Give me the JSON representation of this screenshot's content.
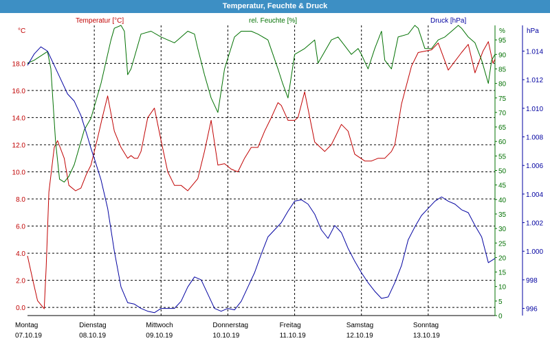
{
  "window": {
    "title": "Temperatur, Feuchte & Druck"
  },
  "legend": {
    "temperature": "Temperatur [°C]",
    "humidity": "rel. Feuchte [%]",
    "pressure": "Druck [hPa]"
  },
  "axes": {
    "temp_unit": "°C",
    "hum_unit": "%",
    "press_unit": "hPa",
    "temp_ticks": [
      "0.0",
      "2.0",
      "4.0",
      "6.0",
      "8.0",
      "10.0",
      "12.0",
      "14.0",
      "16.0",
      "18.0"
    ],
    "hum_ticks": [
      "0",
      "5",
      "10",
      "15",
      "20",
      "25",
      "30",
      "35",
      "40",
      "45",
      "50",
      "55",
      "60",
      "65",
      "70",
      "75",
      "80",
      "85",
      "90",
      "95"
    ],
    "press_ticks": [
      "996",
      "998",
      "1.000",
      "1.002",
      "1.004",
      "1.006",
      "1.008",
      "1.010",
      "1.012",
      "1.014"
    ]
  },
  "days": [
    {
      "name": "Montag",
      "date": "07.10.19"
    },
    {
      "name": "Dienstag",
      "date": "08.10.19"
    },
    {
      "name": "Mittwoch",
      "date": "09.10.19"
    },
    {
      "name": "Donnerstag",
      "date": "10.10.19"
    },
    {
      "name": "Freitag",
      "date": "11.10.19"
    },
    {
      "name": "Samstag",
      "date": "12.10.19"
    },
    {
      "name": "Sonntag",
      "date": "13.10.19"
    }
  ],
  "colors": {
    "temperature": "#c00000",
    "humidity": "#007000",
    "pressure": "#0000a0",
    "title_bar": "#3d8fc4",
    "grid": "#000000"
  },
  "chart_data": {
    "type": "line",
    "title": "Temperatur, Feuchte & Druck",
    "x_unit": "days",
    "x_range": [
      0,
      7
    ],
    "grid": true,
    "series": [
      {
        "name": "Temperatur [°C]",
        "axis": "left",
        "unit": "°C",
        "ylim": [
          -0.6,
          20.8
        ],
        "x": [
          0,
          0.08,
          0.15,
          0.25,
          0.28,
          0.32,
          0.4,
          0.45,
          0.55,
          0.62,
          0.72,
          0.8,
          0.88,
          0.95,
          1.05,
          1.12,
          1.2,
          1.3,
          1.4,
          1.5,
          1.55,
          1.6,
          1.65,
          1.7,
          1.8,
          1.9,
          2.0,
          2.1,
          2.2,
          2.3,
          2.4,
          2.55,
          2.65,
          2.75,
          2.85,
          2.95,
          3.05,
          3.15,
          3.25,
          3.35,
          3.45,
          3.55,
          3.65,
          3.75,
          3.8,
          3.9,
          4.0,
          4.05,
          4.15,
          4.3,
          4.45,
          4.55,
          4.7,
          4.8,
          4.9,
          5.05,
          5.15,
          5.25,
          5.35,
          5.45,
          5.5,
          5.6,
          5.75,
          5.85,
          5.95,
          6.05,
          6.15,
          6.3,
          6.5,
          6.6,
          6.7,
          6.82,
          6.9,
          6.97,
          7.0
        ],
        "y": [
          3.8,
          2.0,
          0.5,
          -0.1,
          3.0,
          8.5,
          11.8,
          12.3,
          11.0,
          9.0,
          8.6,
          8.8,
          9.8,
          10.5,
          12.5,
          14.0,
          15.6,
          13.0,
          11.8,
          11.0,
          11.2,
          11.0,
          11.0,
          11.5,
          14.0,
          14.7,
          12.3,
          10.0,
          9.0,
          9.0,
          8.6,
          9.5,
          11.5,
          13.8,
          10.5,
          10.6,
          10.2,
          10.0,
          11.0,
          11.8,
          11.8,
          13.0,
          14.0,
          15.1,
          14.9,
          13.8,
          13.8,
          14.0,
          15.9,
          12.2,
          11.5,
          12.0,
          13.5,
          13.0,
          11.3,
          10.8,
          10.8,
          11.0,
          11.0,
          11.5,
          12.0,
          15.0,
          17.8,
          18.8,
          18.9,
          19.0,
          19.5,
          17.5,
          18.8,
          19.4,
          17.3,
          18.9,
          19.6,
          18.0,
          18.3
        ]
      },
      {
        "name": "rel. Feuchte [%]",
        "axis": "right",
        "unit": "%",
        "ylim": [
          0,
          100
        ],
        "x": [
          0,
          0.1,
          0.3,
          0.35,
          0.42,
          0.48,
          0.55,
          0.62,
          0.7,
          0.85,
          0.95,
          1.1,
          1.25,
          1.3,
          1.4,
          1.45,
          1.5,
          1.55,
          1.7,
          1.85,
          2.0,
          2.1,
          2.2,
          2.25,
          2.4,
          2.5,
          2.55,
          2.65,
          2.75,
          2.85,
          2.95,
          3.1,
          3.2,
          3.35,
          3.45,
          3.6,
          3.75,
          3.82,
          3.9,
          4.0,
          4.15,
          4.3,
          4.35,
          4.45,
          4.55,
          4.65,
          4.75,
          4.85,
          4.95,
          5.0,
          5.1,
          5.2,
          5.3,
          5.35,
          5.45,
          5.55,
          5.7,
          5.8,
          5.85,
          5.95,
          6.05,
          6.15,
          6.25,
          6.35,
          6.45,
          6.5,
          6.6,
          6.7,
          6.8,
          6.9,
          6.95,
          7.0
        ],
        "y": [
          87,
          88,
          91,
          85,
          60,
          47,
          46,
          48,
          52,
          64,
          68,
          80,
          95,
          99,
          100,
          98,
          83,
          85,
          97,
          98,
          96,
          95,
          94,
          95,
          98,
          97,
          92,
          83,
          75,
          70,
          85,
          96,
          98,
          98,
          97,
          95,
          85,
          80,
          75,
          90,
          92,
          95,
          87,
          91,
          95,
          96,
          93,
          90,
          92,
          90,
          85,
          92,
          98,
          88,
          85,
          96,
          97,
          100,
          99,
          92,
          92,
          95,
          96,
          98,
          100,
          99,
          96,
          94,
          88,
          80,
          88,
          90
        ]
      },
      {
        "name": "Druck [hPa]",
        "axis": "right",
        "unit": "hPa",
        "ylim": [
          995.5,
          1015.8
        ],
        "x": [
          0,
          0.1,
          0.2,
          0.3,
          0.4,
          0.5,
          0.6,
          0.7,
          0.8,
          0.9,
          0.95,
          1.0,
          1.1,
          1.2,
          1.3,
          1.4,
          1.5,
          1.6,
          1.7,
          1.8,
          1.9,
          2.0,
          2.1,
          2.2,
          2.3,
          2.4,
          2.5,
          2.6,
          2.7,
          2.8,
          2.9,
          3.0,
          3.1,
          3.2,
          3.3,
          3.4,
          3.5,
          3.6,
          3.7,
          3.8,
          3.9,
          4.0,
          4.1,
          4.2,
          4.3,
          4.4,
          4.5,
          4.6,
          4.7,
          4.8,
          4.9,
          5.0,
          5.1,
          5.2,
          5.3,
          5.4,
          5.5,
          5.6,
          5.7,
          5.8,
          5.9,
          6.0,
          6.1,
          6.2,
          6.3,
          6.4,
          6.5,
          6.6,
          6.7,
          6.8,
          6.9,
          7.0
        ],
        "y": [
          1013.0,
          1013.8,
          1014.3,
          1014.0,
          1013.0,
          1012.0,
          1011.0,
          1010.5,
          1009.5,
          1008.0,
          1007.2,
          1006.5,
          1005.0,
          1003.0,
          1000.0,
          997.5,
          996.4,
          996.3,
          996.0,
          995.8,
          995.7,
          996.0,
          996.0,
          996.0,
          996.5,
          997.5,
          998.2,
          998.0,
          997.0,
          996.0,
          995.8,
          996.0,
          995.9,
          996.5,
          997.5,
          998.5,
          999.8,
          1001.0,
          1001.5,
          1002.0,
          1002.8,
          1003.5,
          1003.6,
          1003.3,
          1002.6,
          1001.5,
          1000.9,
          1001.8,
          1001.3,
          1000.2,
          999.3,
          998.5,
          997.8,
          997.2,
          996.7,
          996.8,
          997.8,
          999.0,
          1000.8,
          1001.7,
          1002.5,
          1003.0,
          1003.5,
          1003.8,
          1003.5,
          1003.3,
          1002.9,
          1002.7,
          1001.8,
          1001.0,
          999.2,
          999.5
        ]
      }
    ]
  }
}
